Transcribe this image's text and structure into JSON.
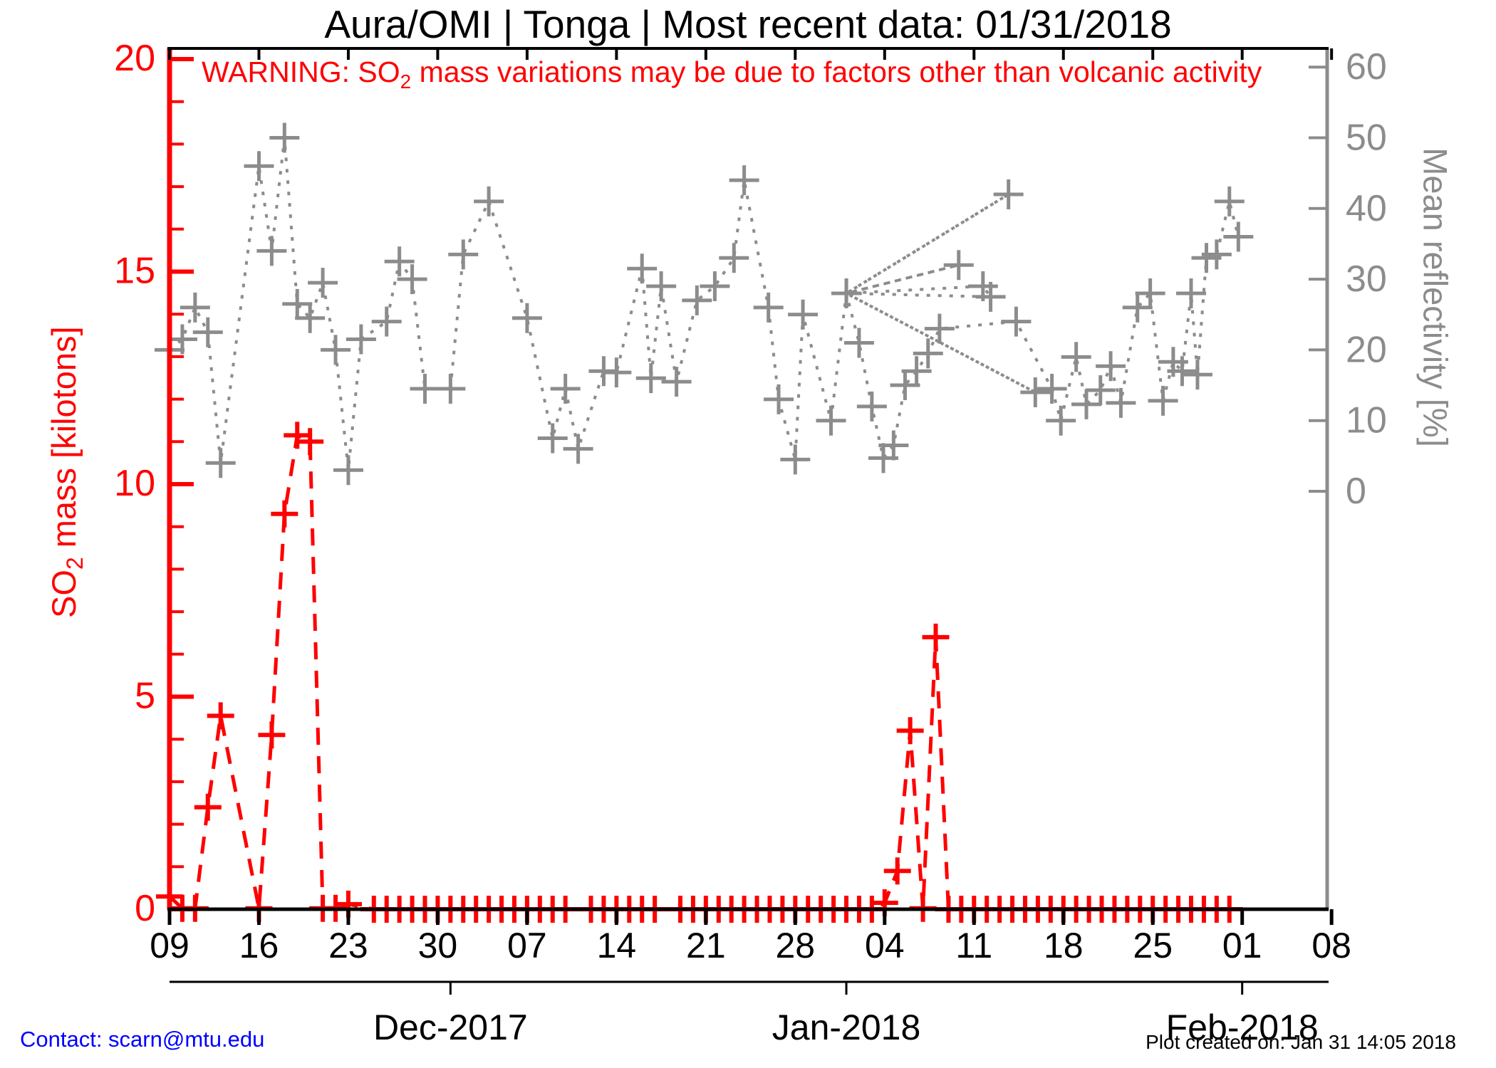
{
  "title": "Aura/OMI | Tonga | Most recent data: 01/31/2018",
  "warning": {
    "prefix": "WARNING: SO",
    "sub": "2",
    "suffix": " mass variations may be due to factors other than volcanic activity"
  },
  "contact": "Contact: scarn@mtu.edu",
  "credit": "Plot created on: Jan 31 14:05 2018",
  "colors": {
    "so2": "#ff0000",
    "reflectivity": "#8c8c8c",
    "axis": "#000000",
    "contact_link": "#0000ff",
    "background": "#ffffff"
  },
  "chart_data": {
    "type": "line",
    "title": "Aura/OMI | Tonga | Most recent data: 01/31/2018",
    "grid": false,
    "legend": "none",
    "x_axis": {
      "start_date": "2017-11-09",
      "end_date": "2018-02-08",
      "domain_days": [
        0,
        91.1
      ],
      "week_tick_days": [
        0,
        7,
        14,
        21,
        28,
        35,
        42,
        49,
        56,
        63,
        70,
        77,
        84,
        91
      ],
      "week_tick_labels": [
        "09",
        "16",
        "23",
        "30",
        "07",
        "14",
        "21",
        "28",
        "04",
        "11",
        "18",
        "25",
        "01",
        "08"
      ],
      "month_ticks": [
        {
          "day": 22,
          "label": "Dec-2017"
        },
        {
          "day": 53,
          "label": "Jan-2018"
        },
        {
          "day": 84,
          "label": "Feb-2018"
        }
      ]
    },
    "left_axis": {
      "label_prefix": "SO",
      "label_sub": "2",
      "label_suffix": " mass [kilotons]",
      "ylim": [
        0,
        20
      ],
      "major_ticks": [
        0,
        5,
        10,
        15,
        20
      ],
      "minor_tick_step": 1
    },
    "right_axis": {
      "label": "Mean reflectivity [%]",
      "ylim": [
        0,
        60
      ],
      "major_ticks": [
        0,
        10,
        20,
        30,
        40,
        50,
        60
      ]
    },
    "series": [
      {
        "name": "Mean reflectivity",
        "axis": "right",
        "unit": "%",
        "line_style": "dotted",
        "marker": "plus",
        "color": "#8c8c8c",
        "points": [
          [
            0,
            20
          ],
          [
            1,
            21.5
          ],
          [
            2,
            26
          ],
          [
            3,
            22.5
          ],
          [
            4,
            4
          ],
          [
            7,
            46
          ],
          [
            8,
            34
          ],
          [
            9,
            50
          ],
          [
            10,
            26.5
          ],
          [
            11,
            24.5
          ],
          [
            12,
            29.5
          ],
          [
            13,
            20
          ],
          [
            14,
            3
          ],
          [
            15,
            21.5
          ],
          [
            17,
            24
          ],
          [
            18,
            32.5
          ],
          [
            19,
            30
          ],
          [
            20,
            14.5
          ],
          [
            22,
            14.5
          ],
          [
            23,
            33.5
          ],
          [
            25,
            41
          ],
          [
            28,
            24.5
          ],
          [
            30,
            7.5
          ],
          [
            31,
            14.5
          ],
          [
            32,
            6
          ],
          [
            34,
            17
          ],
          [
            35,
            16.8
          ],
          [
            37,
            31.5
          ],
          [
            37.7,
            16
          ],
          [
            38.5,
            29
          ],
          [
            39.7,
            15.5
          ],
          [
            41.3,
            27
          ],
          [
            42.7,
            29
          ],
          [
            44.2,
            33
          ],
          [
            45,
            44
          ],
          [
            46.9,
            26
          ],
          [
            47.7,
            13
          ],
          [
            49,
            4.5
          ],
          [
            49.6,
            25
          ],
          [
            51.8,
            10
          ],
          [
            53,
            28
          ],
          [
            65.7,
            42
          ],
          [
            53,
            28
          ],
          [
            63.7,
            29
          ],
          [
            64.3,
            27.5
          ],
          [
            53,
            28
          ],
          [
            61.8,
            32
          ],
          [
            53,
            28
          ],
          [
            67.8,
            14
          ],
          [
            53,
            28
          ],
          [
            54,
            21
          ],
          [
            55,
            12
          ],
          [
            55.9,
            4.7
          ],
          [
            56.7,
            6.5
          ],
          [
            57.6,
            15
          ],
          [
            58.5,
            17
          ],
          [
            59.4,
            19.5
          ],
          [
            60.3,
            23
          ],
          [
            66.3,
            24
          ],
          [
            69.1,
            14.5
          ],
          [
            69.8,
            10
          ],
          [
            71,
            19
          ],
          [
            71.8,
            12.3
          ],
          [
            72.9,
            14.3
          ],
          [
            73.7,
            17.7
          ],
          [
            74.5,
            12.5
          ],
          [
            75.8,
            26
          ],
          [
            76.8,
            28
          ],
          [
            77.8,
            12.8
          ],
          [
            78.6,
            18.3
          ],
          [
            79.3,
            17
          ],
          [
            80,
            28
          ],
          [
            80.5,
            16.5
          ],
          [
            81.2,
            33
          ],
          [
            82,
            33.5
          ],
          [
            83,
            41
          ],
          [
            83.7,
            36
          ]
        ]
      },
      {
        "name": "SO2 mass",
        "axis": "left",
        "unit": "kilotons",
        "line_style": "dashed",
        "marker": "plus",
        "color": "#ff0000",
        "points": [
          [
            0,
            0.3
          ],
          [
            1,
            0.02
          ],
          [
            2,
            0.02
          ],
          [
            3,
            2.4
          ],
          [
            4,
            4.55
          ],
          [
            7,
            0.02
          ],
          [
            8,
            4.1
          ],
          [
            9,
            9.3
          ],
          [
            10,
            11.15
          ],
          [
            11,
            11.0
          ],
          [
            12,
            0.02
          ],
          [
            13,
            0.02
          ],
          [
            14,
            0.12
          ],
          [
            16,
            0
          ],
          [
            17,
            0
          ],
          [
            18,
            0
          ],
          [
            19,
            0
          ],
          [
            20,
            0
          ],
          [
            21,
            0
          ],
          [
            22,
            0
          ],
          [
            23,
            0
          ],
          [
            24,
            0
          ],
          [
            25,
            0
          ],
          [
            26,
            0
          ],
          [
            27,
            0
          ],
          [
            28,
            0
          ],
          [
            29,
            0
          ],
          [
            30,
            0
          ],
          [
            31,
            0
          ],
          [
            33,
            0
          ],
          [
            34,
            0
          ],
          [
            35,
            0
          ],
          [
            36,
            0
          ],
          [
            37,
            0
          ],
          [
            38,
            0
          ],
          [
            40,
            0
          ],
          [
            41,
            0
          ],
          [
            42,
            0
          ],
          [
            43,
            0
          ],
          [
            44,
            0
          ],
          [
            45,
            0
          ],
          [
            46,
            0
          ],
          [
            47,
            0
          ],
          [
            48,
            0
          ],
          [
            49,
            0
          ],
          [
            50,
            0
          ],
          [
            51,
            0
          ],
          [
            52,
            0
          ],
          [
            53,
            0
          ],
          [
            54,
            0
          ],
          [
            55,
            0
          ],
          [
            56,
            0.15
          ],
          [
            57,
            0.9
          ],
          [
            58,
            4.2
          ],
          [
            59,
            0.02
          ],
          [
            60,
            6.4
          ],
          [
            61,
            0
          ],
          [
            62,
            0
          ],
          [
            63,
            0
          ],
          [
            64,
            0
          ],
          [
            65,
            0
          ],
          [
            66,
            0
          ],
          [
            67,
            0
          ],
          [
            68,
            0
          ],
          [
            69,
            0
          ],
          [
            70,
            0
          ],
          [
            71,
            0
          ],
          [
            72,
            0
          ],
          [
            73,
            0
          ],
          [
            74,
            0
          ],
          [
            75,
            0
          ],
          [
            76,
            0
          ],
          [
            77,
            0
          ],
          [
            78,
            0
          ],
          [
            79,
            0
          ],
          [
            80,
            0
          ],
          [
            81,
            0
          ],
          [
            82,
            0
          ],
          [
            83,
            0
          ]
        ]
      }
    ]
  }
}
